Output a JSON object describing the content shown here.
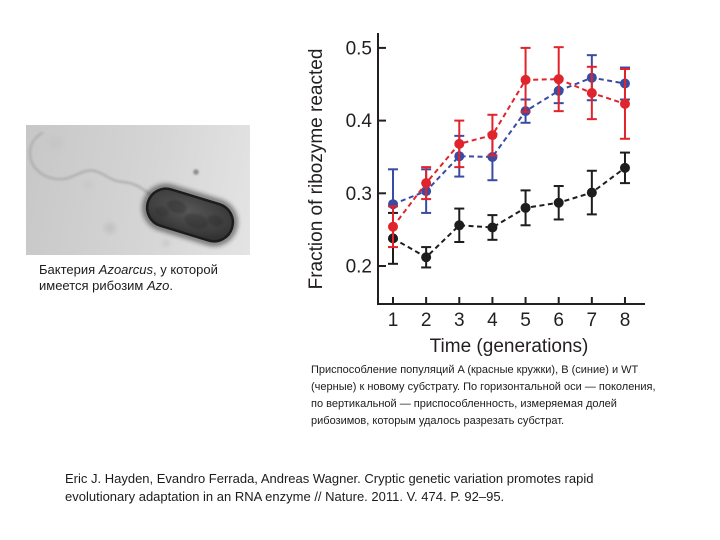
{
  "micrograph_caption": {
    "l1p1": "Бактерия ",
    "l1p2": "Azoarcus",
    "l1p3": ", у которой",
    "l2p1": "имеется рибозим ",
    "l2p2": "Azo",
    "l2p3": "."
  },
  "figure_caption": {
    "lines": [
      "Приспособление популяций A (красные кружки), B (синие) и WT",
      "(черные) к новому субстрату. По горизонтальной оси — поколения,",
      "по вертикальной — приспособленность, измеряемая долей",
      "рибозимов, которым удалось разрезать субстрат."
    ]
  },
  "citation": {
    "line1": "Eric J. Hayden, Evandro Ferrada, Andreas Wagner. Cryptic genetic variation promotes rapid",
    "line2": "evolutionary adaptation in an RNA enzyme // Nature. 2011. V. 474. P. 92–95."
  },
  "chart_data": {
    "type": "line",
    "title": "",
    "xlabel": "Time (generations)",
    "ylabel": "Fraction of ribozyme reacted",
    "x": [
      1,
      2,
      3,
      4,
      5,
      6,
      7,
      8
    ],
    "xticklabels": [
      "1",
      "2",
      "3",
      "4",
      "5",
      "6",
      "7",
      "8"
    ],
    "yticks": [
      0.2,
      0.3,
      0.4,
      0.5
    ],
    "yticklabels": [
      "0.2",
      "0.3",
      "0.4",
      "0.5"
    ],
    "ylim": [
      0.15,
      0.52
    ],
    "grid": false,
    "legend_position": "none",
    "line_style": "dashed",
    "marker": "circle",
    "axis_color": "#231f20",
    "series": [
      {
        "key": "A",
        "label": "A (красные кружки)",
        "color": "#e1232b",
        "values": [
          0.254,
          0.314,
          0.368,
          0.38,
          0.456,
          0.457,
          0.438,
          0.423
        ],
        "errors": [
          0.028,
          0.022,
          0.032,
          0.028,
          0.044,
          0.044,
          0.036,
          0.048
        ]
      },
      {
        "key": "B",
        "label": "B (синие)",
        "color": "#3a4ca2",
        "values": [
          0.285,
          0.303,
          0.351,
          0.35,
          0.413,
          0.441,
          0.459,
          0.451
        ],
        "errors": [
          0.048,
          0.03,
          0.028,
          0.032,
          0.016,
          0.017,
          0.031,
          0.022
        ]
      },
      {
        "key": "WT",
        "label": "WT (черные)",
        "color": "#1e1c1d",
        "values": [
          0.238,
          0.212,
          0.256,
          0.253,
          0.28,
          0.287,
          0.301,
          0.335
        ],
        "errors": [
          0.035,
          0.014,
          0.023,
          0.017,
          0.024,
          0.023,
          0.03,
          0.021
        ]
      }
    ]
  }
}
